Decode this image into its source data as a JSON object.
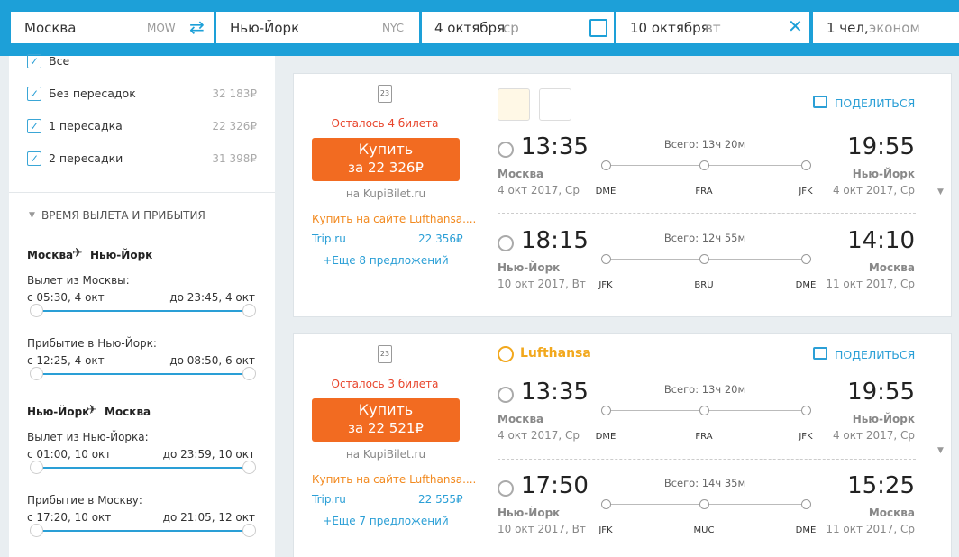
{
  "search": {
    "from": "Москва",
    "from_code": "MOW",
    "to": "Нью-Йорк",
    "to_code": "NYC",
    "date_out": "4 октября",
    "day_out": "ср",
    "date_back": "10 октября",
    "day_back": "вт",
    "passengers": "1 чел,",
    "cabin": "эконом"
  },
  "filters": {
    "stops": [
      {
        "label": "Все"
      },
      {
        "label": "Без пересадок",
        "price": "32 183₽"
      },
      {
        "label": "1 пересадка",
        "price": "22 326₽"
      },
      {
        "label": "2 пересадки",
        "price": "31 398₽"
      }
    ],
    "times_title": "ВРЕМЯ ВЫЛЕТА И ПРИБЫТИЯ",
    "groups": [
      {
        "route_from": "Москва",
        "route_to": "Нью-Йорк",
        "sliders": [
          {
            "label": "Вылет из Москвы:",
            "min": "с 05:30, 4 окт",
            "max": "до 23:45, 4 окт"
          },
          {
            "label": "Прибытие в Нью-Йорк:",
            "min": "с 12:25, 4 окт",
            "max": "до 08:50, 6 окт"
          }
        ]
      },
      {
        "route_from": "Нью-Йорк",
        "route_to": "Москва",
        "sliders": [
          {
            "label": "Вылет из Нью-Йорка:",
            "min": "с 01:00, 10 окт",
            "max": "до 23:59, 10 окт"
          },
          {
            "label": "Прибытие в Москву:",
            "min": "с 17:20, 10 окт",
            "max": "до 21:05, 12 окт"
          }
        ]
      }
    ]
  },
  "tickets": [
    {
      "baggage": "23",
      "remaining": "Осталось 4 билета",
      "buy": "Купить",
      "price": "за 22 326₽",
      "source": "на KupiBilet.ru",
      "airline_link": "Купить на сайте Lufthansa....",
      "alt_site": "Trip.ru",
      "alt_price": "22 356₽",
      "more": "+Еще 8 предложений",
      "share": "ПОДЕЛИТЬСЯ",
      "legs": [
        {
          "dep_time": "13:35",
          "dep_city": "Москва",
          "dep_date": "4 окт 2017, Ср",
          "total": "Всего: 13ч 20м",
          "airports": [
            "DME",
            "FRA",
            "JFK"
          ],
          "arr_time": "19:55",
          "arr_city": "Нью-Йорк",
          "arr_date": "4 окт 2017, Ср"
        },
        {
          "dep_time": "18:15",
          "dep_city": "Нью-Йорк",
          "dep_date": "10 окт 2017, Вт",
          "total": "Всего: 12ч 55м",
          "airports": [
            "JFK",
            "BRU",
            "DME"
          ],
          "arr_time": "14:10",
          "arr_city": "Москва",
          "arr_date": "11 окт 2017, Ср"
        }
      ]
    },
    {
      "baggage": "23",
      "remaining": "Осталось 3 билета",
      "buy": "Купить",
      "price": "за 22 521₽",
      "source": "на KupiBilet.ru",
      "airline_link": "Купить на сайте Lufthansa....",
      "alt_site": "Trip.ru",
      "alt_price": "22 555₽",
      "more": "+Еще 7 предложений",
      "share": "ПОДЕЛИТЬСЯ",
      "airline": "Lufthansa",
      "legs": [
        {
          "dep_time": "13:35",
          "dep_city": "Москва",
          "dep_date": "4 окт 2017, Ср",
          "total": "Всего: 13ч 20м",
          "airports": [
            "DME",
            "FRA",
            "JFK"
          ],
          "arr_time": "19:55",
          "arr_city": "Нью-Йорк",
          "arr_date": "4 окт 2017, Ср"
        },
        {
          "dep_time": "17:50",
          "dep_city": "Нью-Йорк",
          "dep_date": "10 окт 2017, Вт",
          "total": "Всего: 14ч 35м",
          "airports": [
            "JFK",
            "MUC",
            "DME"
          ],
          "arr_time": "15:25",
          "arr_city": "Москва",
          "arr_date": "11 окт 2017, Ср"
        }
      ]
    }
  ]
}
